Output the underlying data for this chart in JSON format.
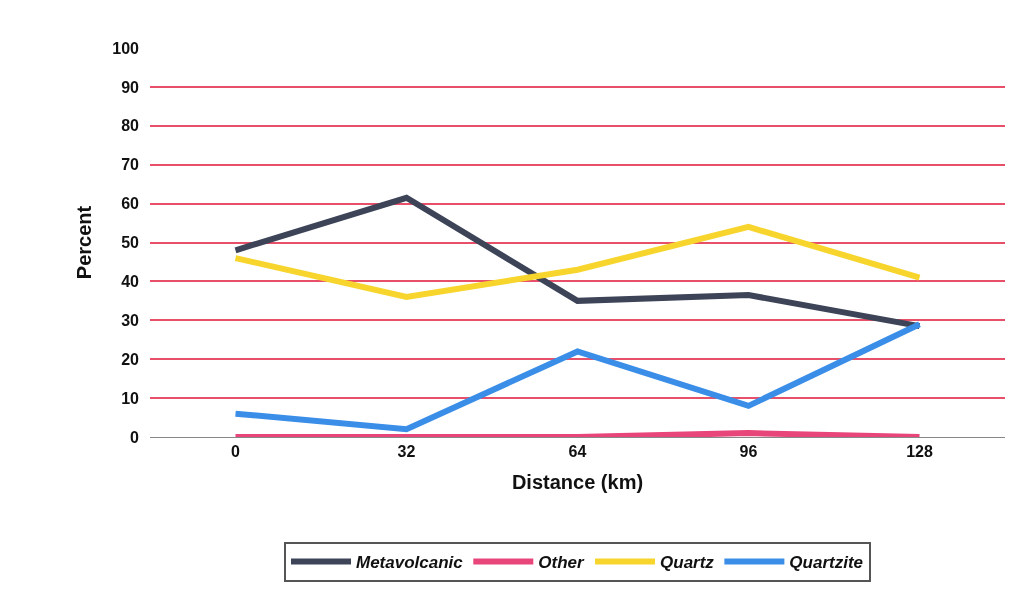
{
  "chart_data": {
    "type": "line",
    "xlabel": "Distance (km)",
    "ylabel": "Percent",
    "categories": [
      "0",
      "32",
      "64",
      "96",
      "128"
    ],
    "series": [
      {
        "name": "Metavolcanic",
        "color": "#3d4458",
        "values": [
          48,
          61.5,
          35,
          36.5,
          28.5
        ]
      },
      {
        "name": "Other",
        "color": "#e8457a",
        "values": [
          0,
          0,
          0,
          1,
          0
        ]
      },
      {
        "name": "Quartz",
        "color": "#f7d52c",
        "values": [
          46,
          36,
          43,
          54,
          41
        ]
      },
      {
        "name": "Quartzite",
        "color": "#3a8ee8",
        "values": [
          6,
          2,
          22,
          8,
          29
        ]
      }
    ],
    "ylim": [
      0,
      100
    ],
    "yticks": [
      0,
      10,
      20,
      30,
      40,
      50,
      60,
      70,
      80,
      90,
      100
    ],
    "grid": "y",
    "legend": "bottom",
    "marker": "none",
    "line_style": "solid"
  }
}
